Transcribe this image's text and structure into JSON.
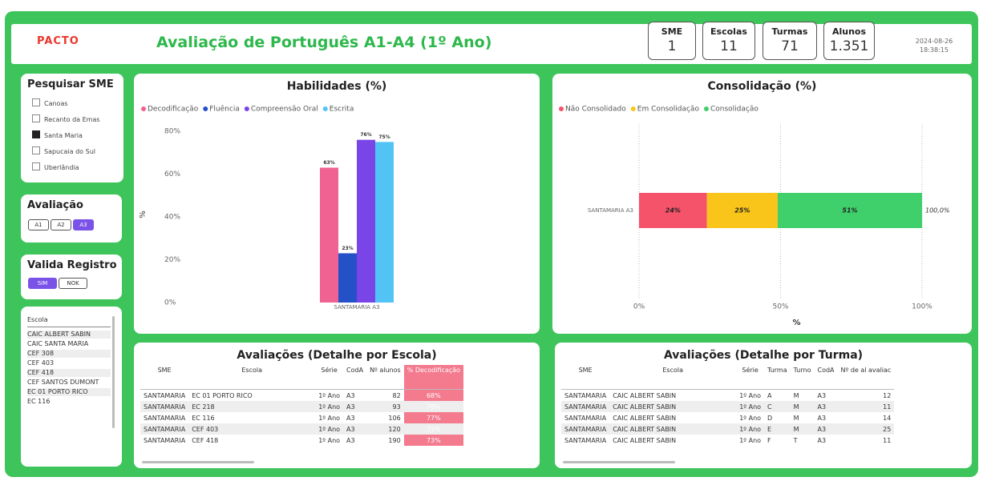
{
  "header": {
    "logo": "PACTO",
    "title": "Avaliação de Português A1-A4 (1º Ano)",
    "date": "2024-08-26",
    "time": "18:38:15"
  },
  "cards": [
    {
      "label": "SME",
      "value": 1
    },
    {
      "label": "Escolas",
      "value": 11
    },
    {
      "label": "Turmas",
      "value": 71
    },
    {
      "label": "Alunos",
      "value": 1351,
      "value_label": "1.351"
    }
  ],
  "slicers": {
    "sme": {
      "title": "Pesquisar SME",
      "items": [
        {
          "label": "Canoas",
          "selected": false
        },
        {
          "label": "Recanto da Emas",
          "selected": false
        },
        {
          "label": "Santa Maria",
          "selected": true
        },
        {
          "label": "Sapucaia do Sul",
          "selected": false
        },
        {
          "label": "Uberlândia",
          "selected": false
        }
      ]
    },
    "avaliacao": {
      "title": "Avaliação",
      "items": [
        {
          "label": "A1",
          "selected": false
        },
        {
          "label": "A2",
          "selected": false
        },
        {
          "label": "A3",
          "selected": true
        }
      ]
    },
    "valida": {
      "title": "Valida Registro",
      "items": [
        {
          "label": "SIM",
          "selected": true
        },
        {
          "label": "NOK",
          "selected": false
        }
      ]
    },
    "escola": {
      "title": "Escola",
      "items": [
        "CAIC ALBERT SABIN",
        "CAIC SANTA MARIA",
        "CEF 308",
        "CEF 403",
        "CEF 418",
        "CEF SANTOS DUMONT",
        "EC 01 PORTO RICO",
        "EC 116"
      ]
    }
  },
  "chart_data": [
    {
      "type": "bar",
      "title": "Habilidades (%)",
      "ylabel": "%",
      "categories": [
        "SANTAMARIA A3"
      ],
      "series": [
        {
          "name": "Decodificação",
          "color": "#f06292",
          "values": [
            63
          ],
          "value_labels": [
            "63%"
          ]
        },
        {
          "name": "Fluência",
          "color": "#2450c8",
          "values": [
            23
          ],
          "value_labels": [
            "23%"
          ]
        },
        {
          "name": "Compreensão Oral",
          "color": "#7a45e6",
          "values": [
            76
          ],
          "value_labels": [
            "76%"
          ]
        },
        {
          "name": "Escrita",
          "color": "#52c3f5",
          "values": [
            75
          ],
          "value_labels": [
            "75%"
          ]
        }
      ],
      "ylim": [
        0,
        80
      ],
      "yticks": [
        {
          "value": 0,
          "label": "0%"
        },
        {
          "value": 20,
          "label": "20%"
        },
        {
          "value": 40,
          "label": "40%"
        },
        {
          "value": 60,
          "label": "60%"
        },
        {
          "value": 80,
          "label": "80%"
        }
      ],
      "grid": false
    },
    {
      "type": "stacked_hbar",
      "title": "Consolidação (%)",
      "xlabel": "%",
      "categories": [
        "SANTAMARIA A3"
      ],
      "series": [
        {
          "name": "Não Consolidado",
          "color": "#f5536a",
          "values": [
            24
          ],
          "value_labels": [
            "24%"
          ]
        },
        {
          "name": "Em Consolidação",
          "color": "#f9c51a",
          "values": [
            25
          ],
          "value_labels": [
            "25%"
          ]
        },
        {
          "name": "Consolidação",
          "color": "#3fcf6b",
          "values": [
            51
          ],
          "value_labels": [
            "51%"
          ]
        }
      ],
      "total_labels": [
        "100,0%"
      ],
      "xlim": [
        0,
        100
      ],
      "xticks": [
        {
          "value": 0,
          "label": "0%"
        },
        {
          "value": 50,
          "label": "50%"
        },
        {
          "value": 100,
          "label": "100%"
        }
      ],
      "grid": true
    }
  ],
  "tables": [
    {
      "title": "Avaliações (Detalhe por Escola)",
      "columns": [
        "SME",
        "Escola",
        "Série",
        "CodA",
        "Nº alunos",
        "% Decodificação"
      ],
      "rows": [
        [
          "SANTAMARIA",
          "EC 01 PORTO RICO",
          "1º Ano",
          "A3",
          82,
          "68%"
        ],
        [
          "SANTAMARIA",
          "EC 218",
          "1º Ano",
          "A3",
          93,
          "78%"
        ],
        [
          "SANTAMARIA",
          "EC 116",
          "1º Ano",
          "A3",
          106,
          "77%"
        ],
        [
          "SANTAMARIA",
          "CEF 403",
          "1º Ano",
          "A3",
          120,
          "75%"
        ],
        [
          "SANTAMARIA",
          "CEF 418",
          "1º Ano",
          "A3",
          190,
          "73%"
        ]
      ],
      "highlight_column": 5
    },
    {
      "title": "Avaliações (Detalhe por Turma)",
      "columns": [
        "SME",
        "Escola",
        "Série",
        "Turma",
        "Turno",
        "CodA",
        "Nº de al avaliac"
      ],
      "rows": [
        [
          "SANTAMARIA",
          "CAIC ALBERT SABIN",
          "1º Ano",
          "A",
          "M",
          "A3",
          12
        ],
        [
          "SANTAMARIA",
          "CAIC ALBERT SABIN",
          "1º Ano",
          "C",
          "M",
          "A3",
          11
        ],
        [
          "SANTAMARIA",
          "CAIC ALBERT SABIN",
          "1º Ano",
          "D",
          "M",
          "A3",
          14
        ],
        [
          "SANTAMARIA",
          "CAIC ALBERT SABIN",
          "1º Ano",
          "E",
          "M",
          "A3",
          25
        ],
        [
          "SANTAMARIA",
          "CAIC ALBERT SABIN",
          "1º Ano",
          "F",
          "T",
          "A3",
          11
        ]
      ]
    }
  ]
}
